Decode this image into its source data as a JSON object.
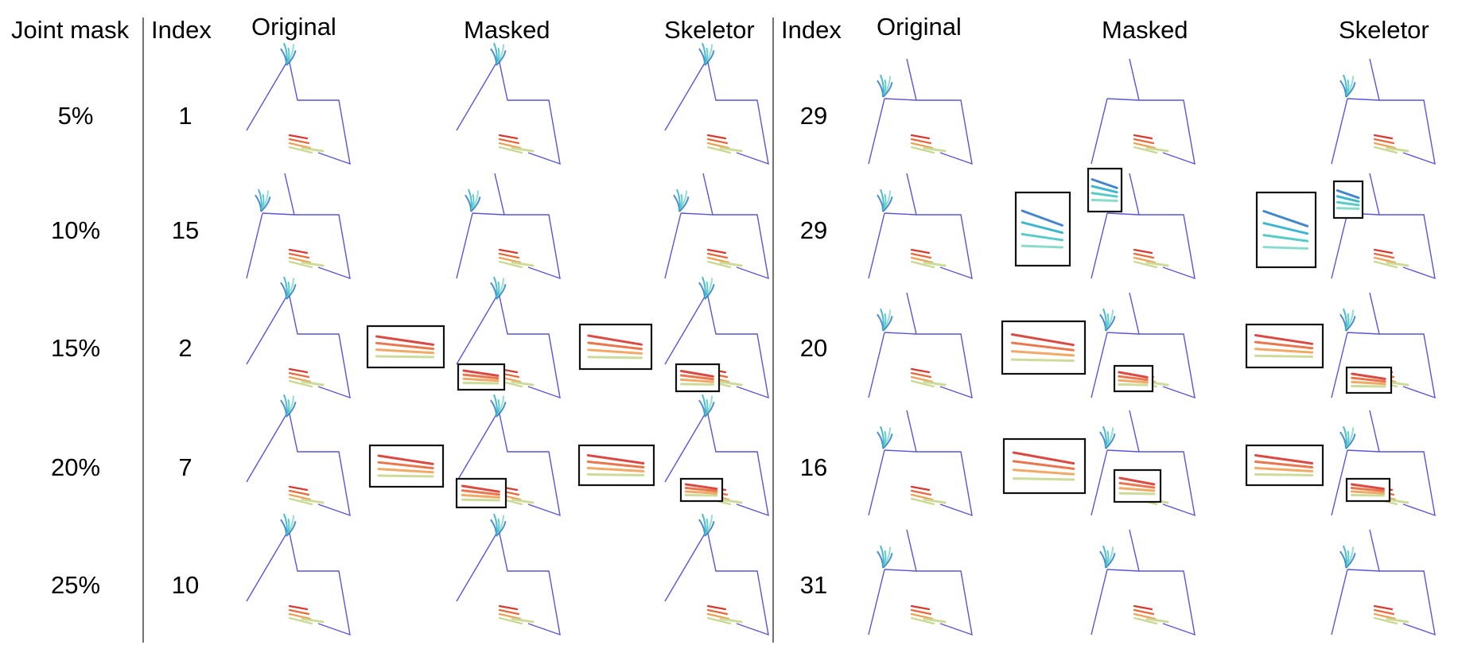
{
  "headers": {
    "joint_mask": "Joint mask",
    "left_index": "Index",
    "left_original": "Original",
    "left_masked": "Masked",
    "left_skeletor": "Skeletor",
    "right_index": "Index",
    "right_original": "Original",
    "right_masked": "Masked",
    "right_skeletor": "Skeletor"
  },
  "rows": [
    {
      "mask": "5%",
      "left_index": "1",
      "right_index": "29"
    },
    {
      "mask": "10%",
      "left_index": "15",
      "right_index": "29"
    },
    {
      "mask": "15%",
      "left_index": "2",
      "right_index": "20"
    },
    {
      "mask": "20%",
      "left_index": "7",
      "right_index": "16"
    },
    {
      "mask": "25%",
      "left_index": "10",
      "right_index": "31"
    }
  ],
  "colors": {
    "body_line": "#5a55d6",
    "left_hand": [
      "#2f79c9",
      "#2ab0c8",
      "#45c6c0",
      "#7fd8c8"
    ],
    "right_hand": [
      "#d6372f",
      "#e8683a",
      "#f0a055",
      "#c8d890",
      "#bfe0a8"
    ],
    "divider": "#444444",
    "inset_border": "#111111"
  }
}
